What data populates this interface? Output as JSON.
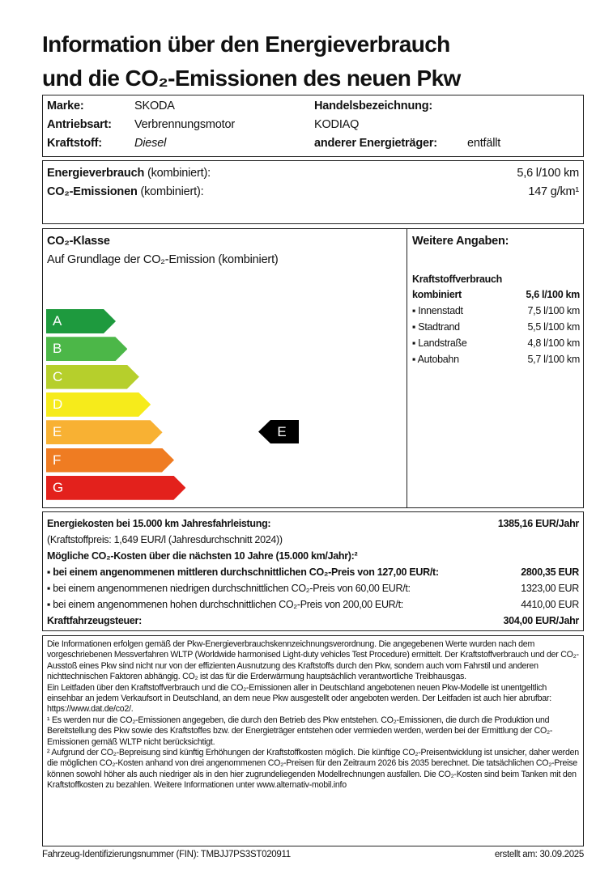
{
  "title": {
    "line1": "Information über den Energieverbrauch",
    "line2": "und die CO₂-Emissionen des neuen Pkw"
  },
  "vehicle": {
    "marke_label": "Marke:",
    "marke": "SKODA",
    "antrieb_label": "Antriebsart:",
    "antrieb": "Verbrennungsmotor",
    "kraftstoff_label": "Kraftstoff:",
    "kraftstoff": "Diesel",
    "handel_label": "Handelsbezeichnung:",
    "handel": "KODIAQ",
    "anderer_label": "anderer Energieträger:",
    "anderer": "entfällt"
  },
  "consumption": {
    "energy_label_bold": "Energieverbrauch",
    "energy_label_rest": " (kombiniert):",
    "energy_value": "5,6 l/100 km",
    "co2_label_bold": "CO₂-Emissionen",
    "co2_label_rest": " (kombiniert):",
    "co2_value": "147 g/km¹"
  },
  "co2_class": {
    "heading": "CO₂-Klasse",
    "subtitle": "Auf Grundlage der CO₂-Emission (kombiniert)",
    "classes": [
      {
        "letter": "A",
        "color": "#1e9a3e"
      },
      {
        "letter": "B",
        "color": "#4cb748"
      },
      {
        "letter": "C",
        "color": "#b6cf2c"
      },
      {
        "letter": "D",
        "color": "#f6eb1b"
      },
      {
        "letter": "E",
        "color": "#f8b133"
      },
      {
        "letter": "F",
        "color": "#ef7c22"
      },
      {
        "letter": "G",
        "color": "#e3211c"
      }
    ],
    "current": "E"
  },
  "weitere": {
    "heading": "Weitere Angaben:",
    "sub": "Kraftstoffverbrauch",
    "rows": [
      {
        "label": "kombiniert",
        "value": "5,6 l/100 km"
      },
      {
        "label": "▪ Innenstadt",
        "value": "7,5 l/100 km"
      },
      {
        "label": "▪ Stadtrand",
        "value": "5,5 l/100 km"
      },
      {
        "label": "▪ Landstraße",
        "value": "4,8 l/100 km"
      },
      {
        "label": "▪ Autobahn",
        "value": "5,7 l/100 km"
      }
    ]
  },
  "costs": {
    "energy_label": "Energiekosten bei 15.000 km Jahresfahrleistung:",
    "energy_value": "1385,16 EUR/Jahr",
    "fuel_price": "(Kraftstoffpreis: 1,649 EUR/l (Jahresdurchschnitt 2024))",
    "co2_heading": "Mögliche CO₂-Kosten über die nächsten 10 Jahre (15.000 km/Jahr):²",
    "mid_label": "▪ bei einem angenommenen mittleren durchschnittlichen CO₂-Preis von 127,00 EUR/t:",
    "mid_value": "2800,35 EUR",
    "low_label": "▪ bei einem angenommenen niedrigen durchschnittlichen CO₂-Preis von 60,00 EUR/t:",
    "low_value": "1323,00 EUR",
    "high_label": "▪ bei einem angenommenen hohen durchschnittlichen CO₂-Preis von 200,00 EUR/t:",
    "high_value": "4410,00 EUR",
    "tax_label": "Kraftfahrzeugsteuer:",
    "tax_value": "304,00 EUR/Jahr"
  },
  "notes": {
    "p1": "Die Informationen erfolgen gemäß der Pkw-Energieverbrauchskennzeichnungsverordnung. Die angegebenen Werte wurden nach dem vorgeschriebenen Messverfahren WLTP (Worldwide harmonised Light-duty vehicles Test Procedure) ermittelt. Der Kraftstoffverbrauch und der CO₂-Ausstoß eines Pkw sind nicht nur von der effizienten Ausnutzung des Kraftstoffs durch den Pkw, sondern auch vom Fahrstil und anderen nichttechnischen Faktoren abhängig. CO₂ ist das für die Erderwärmung hauptsächlich verantwortliche Treibhausgas.",
    "p2": "Ein Leitfaden über den Kraftstoffverbrauch und die CO₂-Emissionen aller in Deutschland angebotenen neuen Pkw-Modelle ist unentgeltlich einsehbar an jedem Verkaufsort in Deutschland, an dem neue Pkw ausgestellt oder angeboten werden. Der Leitfaden ist auch hier abrufbar: https://www.dat.de/co2/.",
    "p3": "¹ Es werden nur die CO₂-Emissionen angegeben, die durch den Betrieb des Pkw entstehen. CO₂-Emissionen, die durch die Produktion und Bereitstellung des Pkw sowie des Kraftstoffes bzw. der Energieträger entstehen oder vermieden werden, werden bei der Ermittlung der CO₂-Emissionen gemäß WLTP nicht berücksichtigt.",
    "p4": "² Aufgrund der CO₂-Bepreisung sind künftig Erhöhungen der Kraftstoffkosten möglich. Die künftige CO₂-Preisentwicklung ist unsicher, daher werden die möglichen CO₂-Kosten anhand von drei angenommenen CO₂-Preisen für den Zeitraum 2026 bis 2035 berechnet. Die tatsächlichen CO₂-Preise können sowohl höher als auch niedriger als in den hier zugrundeliegenden Modellrechnungen ausfallen. Die CO₂-Kosten sind beim Tanken mit den Kraftstoffkosten zu bezahlen. Weitere Informationen unter www.alternativ-mobil.info"
  },
  "footer": {
    "fin": "Fahrzeug-Identifizierungsnummer (FIN): TMBJJ7PS3ST020911",
    "date": "erstellt am: 30.09.2025"
  }
}
